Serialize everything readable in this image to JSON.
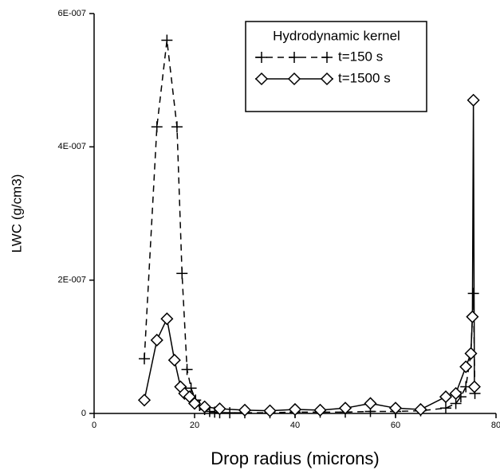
{
  "chart_data": {
    "type": "line",
    "x_label": "Drop radius (microns)",
    "y_label": "LWC (g/cm3)",
    "legend_title": "Hydrodynamic kernel",
    "legend_position": "upper right",
    "xlim": [
      0,
      80
    ],
    "xticks": [
      0,
      20,
      40,
      60,
      80
    ],
    "ylim": [
      0,
      6e-07
    ],
    "yticks": [
      0,
      {
        "value": 2e-07,
        "label": "2E-007"
      },
      {
        "value": 4e-07,
        "label": "4E-007"
      },
      {
        "value": 6e-07,
        "label": "6E-007"
      }
    ],
    "series": [
      {
        "name": "t=150 s",
        "color": "#000000",
        "line_style": "dashed",
        "marker": "plus",
        "x": [
          10,
          12.5,
          14.5,
          16.5,
          17.5,
          18.5,
          19.3,
          20.2,
          21,
          22,
          23,
          24,
          25,
          27,
          30,
          35,
          40,
          45,
          50,
          55,
          60,
          65,
          70,
          72,
          73,
          74,
          75,
          75.5,
          75.8
        ],
        "values": [
          8.2e-08,
          4.3e-07,
          5.6e-07,
          4.3e-07,
          2.1e-07,
          6.6e-08,
          3.8e-08,
          2e-08,
          1.2e-08,
          6e-09,
          3e-09,
          2e-09,
          1e-09,
          1e-09,
          1e-09,
          1e-09,
          2e-09,
          2e-09,
          2e-09,
          3e-09,
          3e-09,
          4e-09,
          8e-09,
          1.5e-08,
          2.5e-08,
          4e-08,
          9e-08,
          1.8e-07,
          3e-08
        ]
      },
      {
        "name": "t=1500 s",
        "color": "#000000",
        "line_style": "solid",
        "marker": "diamond",
        "x": [
          10,
          12.5,
          14.5,
          16,
          17.2,
          18,
          19,
          20,
          22,
          25,
          30,
          35,
          40,
          45,
          50,
          55,
          60,
          65,
          70,
          72,
          74,
          75,
          75.3,
          75.5,
          75.7
        ],
        "values": [
          2e-08,
          1.1e-07,
          1.42e-07,
          8e-08,
          4e-08,
          3e-08,
          2.5e-08,
          1.5e-08,
          1e-08,
          7e-09,
          5e-09,
          4e-09,
          6e-09,
          5e-09,
          8e-09,
          1.5e-08,
          8e-09,
          6e-09,
          2.5e-08,
          3e-08,
          7e-08,
          9e-08,
          1.45e-07,
          4.7e-07,
          4e-08
        ]
      }
    ]
  }
}
